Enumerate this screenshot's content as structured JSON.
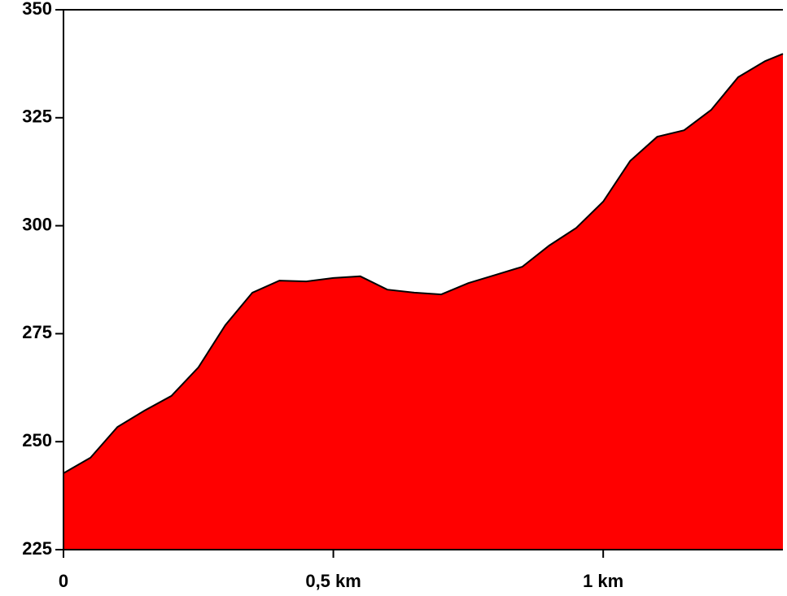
{
  "chart_data": {
    "type": "area",
    "x": [
      0,
      0.05,
      0.1,
      0.15,
      0.2,
      0.25,
      0.3,
      0.35,
      0.4,
      0.45,
      0.5,
      0.55,
      0.6,
      0.65,
      0.7,
      0.75,
      0.8,
      0.85,
      0.9,
      0.95,
      1.0,
      1.05,
      1.1,
      1.15,
      1.2,
      1.25,
      1.3,
      1.333
    ],
    "series": [
      {
        "color": "#ff0000",
        "values": [
          242.7,
          246.3,
          253.4,
          257.2,
          260.6,
          267.2,
          277,
          284.5,
          287.3,
          287.1,
          287.9,
          288.3,
          285.2,
          284.5,
          284.1,
          286.7,
          288.6,
          290.5,
          295.4,
          299.5,
          305.6,
          315,
          320.6,
          322.1,
          326.8,
          334.4,
          338.1,
          339.8
        ]
      }
    ],
    "xlim": [
      0,
      1.333
    ],
    "xticks": [
      0,
      {
        "value": 0.5,
        "label": "0,5 km"
      },
      {
        "value": 1,
        "label": "1 km"
      }
    ],
    "ylim": [
      225,
      350
    ],
    "yticks": [
      225,
      250,
      275,
      300,
      325,
      350
    ]
  }
}
